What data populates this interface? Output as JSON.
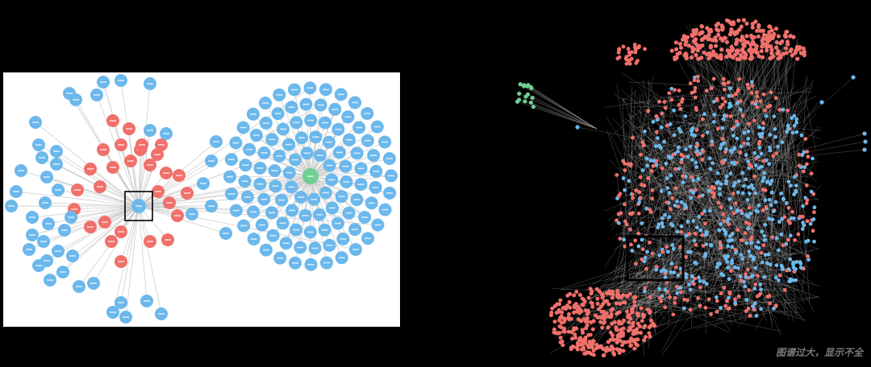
{
  "colors": {
    "background": "#000000",
    "panel": "#ffffff",
    "node_blue": "#6cb8ec",
    "node_red": "#f0706b",
    "node_green": "#6fcf95",
    "edge": "#c9c9c9"
  },
  "left_graph": {
    "description_hidden": "",
    "center_node_color": "blue",
    "hub_node_color": "green",
    "selection_box": true
  },
  "right_graph": {
    "selection_box": true
  },
  "caption": "图谱过大，显示不全"
}
